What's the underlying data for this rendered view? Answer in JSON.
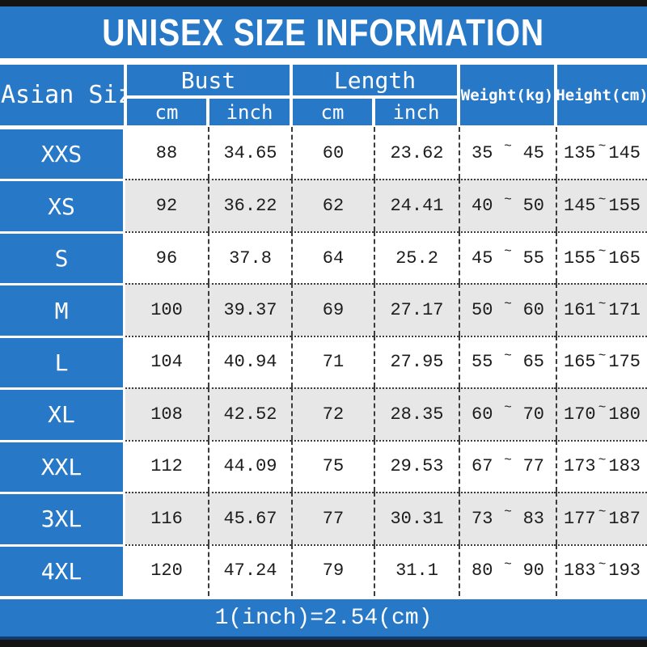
{
  "title": "UNISEX SIZE INFORMATION",
  "footer_note": "1(inch)=2.54(cm)",
  "colors": {
    "accent_blue": "#2878c8",
    "alt_row_gray": "#e7e7e7",
    "row_white": "#ffffff",
    "text_dark": "#1c1c1c",
    "strip_black": "#141414",
    "footer_edge_navy": "#123a6d"
  },
  "chart_data": {
    "type": "table",
    "title": "UNISEX SIZE INFORMATION",
    "tilde": "~",
    "note": "1(inch)=2.54(cm)",
    "columns": [
      "Asian Size",
      "Bust cm",
      "Bust inch",
      "Length cm",
      "Length inch",
      "Weight(kg)",
      "Height(cm)"
    ],
    "header": {
      "size_label": "Asian Size",
      "groups": [
        {
          "label": "Bust",
          "sub": [
            "cm",
            "inch"
          ]
        },
        {
          "label": "Length",
          "sub": [
            "cm",
            "inch"
          ]
        }
      ],
      "weight_label": "Weight(kg)",
      "height_label": "Height(cm)"
    },
    "rows": [
      {
        "size": "XXS",
        "bust_cm": "88",
        "bust_inch": "34.65",
        "length_cm": "60",
        "length_inch": "23.62",
        "weight_min": "35",
        "weight_max": "45",
        "height_min": "135",
        "height_max": "145"
      },
      {
        "size": "XS",
        "bust_cm": "92",
        "bust_inch": "36.22",
        "length_cm": "62",
        "length_inch": "24.41",
        "weight_min": "40",
        "weight_max": "50",
        "height_min": "145",
        "height_max": "155"
      },
      {
        "size": "S",
        "bust_cm": "96",
        "bust_inch": "37.8",
        "length_cm": "64",
        "length_inch": "25.2",
        "weight_min": "45",
        "weight_max": "55",
        "height_min": "155",
        "height_max": "165"
      },
      {
        "size": "M",
        "bust_cm": "100",
        "bust_inch": "39.37",
        "length_cm": "69",
        "length_inch": "27.17",
        "weight_min": "50",
        "weight_max": "60",
        "height_min": "161",
        "height_max": "171"
      },
      {
        "size": "L",
        "bust_cm": "104",
        "bust_inch": "40.94",
        "length_cm": "71",
        "length_inch": "27.95",
        "weight_min": "55",
        "weight_max": "65",
        "height_min": "165",
        "height_max": "175"
      },
      {
        "size": "XL",
        "bust_cm": "108",
        "bust_inch": "42.52",
        "length_cm": "72",
        "length_inch": "28.35",
        "weight_min": "60",
        "weight_max": "70",
        "height_min": "170",
        "height_max": "180"
      },
      {
        "size": "XXL",
        "bust_cm": "112",
        "bust_inch": "44.09",
        "length_cm": "75",
        "length_inch": "29.53",
        "weight_min": "67",
        "weight_max": "77",
        "height_min": "173",
        "height_max": "183"
      },
      {
        "size": "3XL",
        "bust_cm": "116",
        "bust_inch": "45.67",
        "length_cm": "77",
        "length_inch": "30.31",
        "weight_min": "73",
        "weight_max": "83",
        "height_min": "177",
        "height_max": "187"
      },
      {
        "size": "4XL",
        "bust_cm": "120",
        "bust_inch": "47.24",
        "length_cm": "79",
        "length_inch": "31.1",
        "weight_min": "80",
        "weight_max": "90",
        "height_min": "183",
        "height_max": "193"
      }
    ]
  }
}
